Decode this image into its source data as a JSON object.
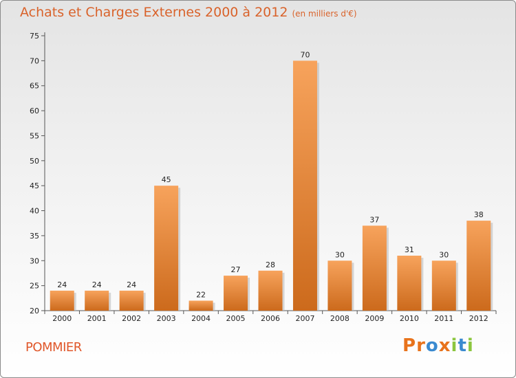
{
  "header": {
    "title": "Achats et Charges Externes 2000 à 2012",
    "unit": "(en milliers d'€)"
  },
  "footer": {
    "town": "POMMIER",
    "logo": [
      "P",
      "r",
      "o",
      "x",
      "i",
      "t",
      "i"
    ]
  },
  "colors": {
    "bar_light": "#f7a35c",
    "bar_dark": "#cc6a1c",
    "title": "#d9622a",
    "logo": [
      "#e8731c",
      "#e8731c",
      "#3a8ad0",
      "#e8731c",
      "#8cc63f",
      "#3a8ad0",
      "#8cc63f"
    ]
  },
  "chart_data": {
    "type": "bar",
    "title": "Achats et Charges Externes 2000 à 2012",
    "categories": [
      "2000",
      "2001",
      "2002",
      "2003",
      "2004",
      "2005",
      "2006",
      "2007",
      "2008",
      "2009",
      "2010",
      "2011",
      "2012"
    ],
    "values": [
      24,
      24,
      24,
      45,
      22,
      27,
      28,
      70,
      30,
      37,
      31,
      30,
      38
    ],
    "ylim": [
      20,
      75
    ],
    "yticks": [
      20,
      25,
      30,
      35,
      40,
      45,
      50,
      55,
      60,
      65,
      70,
      75
    ],
    "xlabel": "",
    "ylabel": "",
    "grid": false,
    "legend": "none"
  }
}
